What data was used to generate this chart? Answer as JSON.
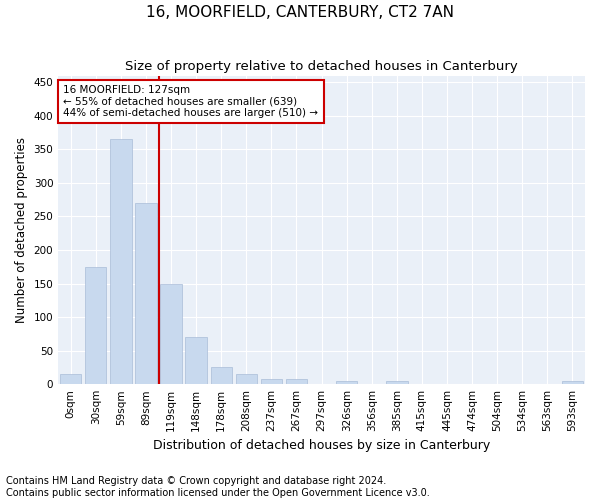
{
  "title": "16, MOORFIELD, CANTERBURY, CT2 7AN",
  "subtitle": "Size of property relative to detached houses in Canterbury",
  "xlabel": "Distribution of detached houses by size in Canterbury",
  "ylabel": "Number of detached properties",
  "bar_color": "#c8d9ee",
  "bar_edge_color": "#aabdd8",
  "bg_color": "#eaf0f8",
  "grid_color": "#ffffff",
  "annotation_line_color": "#cc0000",
  "annotation_box_color": "#cc0000",
  "annotation_text": "16 MOORFIELD: 127sqm\n← 55% of detached houses are smaller (639)\n44% of semi-detached houses are larger (510) →",
  "property_sqm": 127,
  "categories": [
    "0sqm",
    "30sqm",
    "59sqm",
    "89sqm",
    "119sqm",
    "148sqm",
    "178sqm",
    "208sqm",
    "237sqm",
    "267sqm",
    "297sqm",
    "326sqm",
    "356sqm",
    "385sqm",
    "415sqm",
    "445sqm",
    "474sqm",
    "504sqm",
    "534sqm",
    "563sqm",
    "593sqm"
  ],
  "bar_heights": [
    15,
    175,
    365,
    270,
    150,
    70,
    25,
    15,
    8,
    8,
    0,
    5,
    0,
    5,
    0,
    0,
    0,
    0,
    0,
    0,
    5
  ],
  "ylim": [
    0,
    460
  ],
  "yticks": [
    0,
    50,
    100,
    150,
    200,
    250,
    300,
    350,
    400,
    450
  ],
  "property_line_x": 3.5,
  "footer": "Contains HM Land Registry data © Crown copyright and database right 2024.\nContains public sector information licensed under the Open Government Licence v3.0.",
  "title_fontsize": 11,
  "subtitle_fontsize": 9.5,
  "xlabel_fontsize": 9,
  "ylabel_fontsize": 8.5,
  "tick_fontsize": 7.5,
  "footer_fontsize": 7
}
